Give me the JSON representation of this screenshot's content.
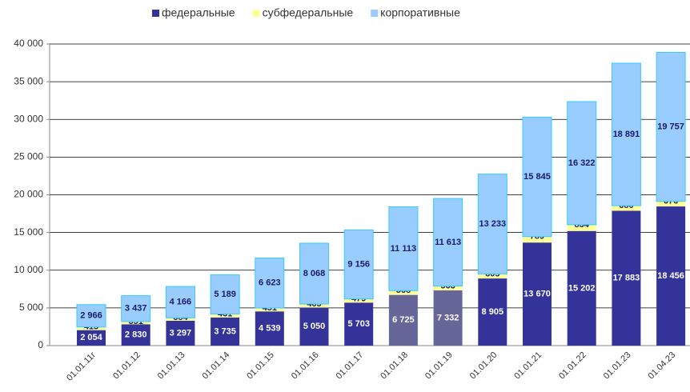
{
  "chart_data": {
    "type": "stacked_bar",
    "categories": [
      "01.01.11г",
      "01.01.12",
      "01.01.13",
      "01.01.14",
      "01.01.15",
      "01.01.16",
      "01.01.17",
      "01.01.18",
      "01.01.19",
      "01.01.20",
      "01.01.21",
      "01.01.22",
      "01.01.23",
      "01.04.23"
    ],
    "series": [
      {
        "name": "федеральные",
        "color": "#333399",
        "point_colors": [
          "#333399",
          "#333399",
          "#333399",
          "#333399",
          "#333399",
          "#333399",
          "#333399",
          "#666699",
          "#666699",
          "#333399",
          "#333399",
          "#333399",
          "#333399",
          "#333399"
        ],
        "values": [
          2054,
          2830,
          3297,
          3735,
          4539,
          5050,
          5703,
          6725,
          7332,
          8905,
          13670,
          15202,
          17883,
          18456
        ],
        "value_labels": [
          "2 054",
          "2 830",
          "3 297",
          "3 735",
          "4 539",
          "5 050",
          "5 703",
          "6 725",
          "7 332",
          "8 905",
          "13 670",
          "15 202",
          "17 883",
          "18 456"
        ]
      },
      {
        "name": "субфедеральные",
        "color": "#ffff99",
        "values": [
          415,
          351,
          384,
          461,
          451,
          465,
          479,
          568,
          563,
          605,
          789,
          834,
          680,
          676
        ],
        "value_labels": [
          "415",
          "351",
          "384",
          "461",
          "451",
          "465",
          "479",
          "568",
          "563",
          "605",
          "789",
          "834",
          "680",
          "676"
        ]
      },
      {
        "name": "корпоративные",
        "color": "#99ccff",
        "values": [
          2966,
          3437,
          4166,
          5189,
          6623,
          8068,
          9156,
          11113,
          11613,
          13233,
          15845,
          16322,
          18891,
          19757
        ],
        "value_labels": [
          "2 966",
          "3 437",
          "4 166",
          "5 189",
          "6 623",
          "8 068",
          "9 156",
          "11 113",
          "11 613",
          "13 233",
          "15 845",
          "16 322",
          "18 891",
          "19 757"
        ]
      }
    ],
    "ylim": [
      0,
      40000
    ],
    "yticks": [
      0,
      {
        "value": 5000,
        "label": "5 000"
      },
      {
        "value": 10000,
        "label": "10 000"
      },
      {
        "value": 15000,
        "label": "15 000"
      },
      {
        "value": 20000,
        "label": "20 000"
      },
      {
        "value": 25000,
        "label": "25 000"
      },
      {
        "value": 30000,
        "label": "30 000"
      },
      {
        "value": 35000,
        "label": "35 000"
      },
      {
        "value": 40000,
        "label": "40 000"
      }
    ],
    "grid": true,
    "legend": "top"
  }
}
